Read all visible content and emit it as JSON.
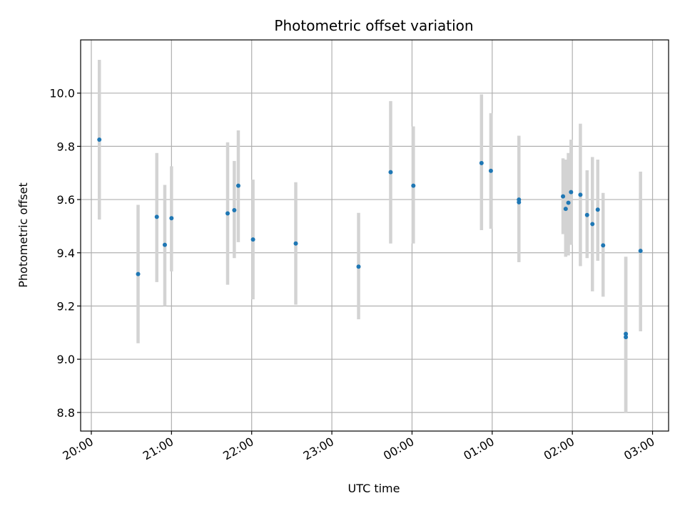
{
  "chart_data": {
    "type": "scatter",
    "title": "Photometric offset variation",
    "xlabel": "UTC time",
    "ylabel": "Photometric offset",
    "x_tick_labels": [
      "20:00",
      "21:00",
      "22:00",
      "23:00",
      "00:00",
      "01:00",
      "02:00",
      "03:00"
    ],
    "y_tick_labels": [
      "8.8",
      "9.0",
      "9.2",
      "9.4",
      "9.6",
      "9.8",
      "10.0"
    ],
    "x_axis": "UTC time (HH:MM), points given as minutes-of-evening clock times",
    "xlim": [
      "19:52",
      "03:12"
    ],
    "ylim": [
      8.73,
      10.2
    ],
    "grid": true,
    "errorbar_color": "#d3d3d3",
    "marker_color": "#1f77b4",
    "points": [
      {
        "x": "20:06",
        "y": 9.825,
        "err_lo": 9.525,
        "err_hi": 10.125
      },
      {
        "x": "20:35",
        "y": 9.32,
        "err_lo": 9.06,
        "err_hi": 9.58
      },
      {
        "x": "20:49",
        "y": 9.535,
        "err_lo": 9.29,
        "err_hi": 9.775
      },
      {
        "x": "20:55",
        "y": 9.43,
        "err_lo": 9.2,
        "err_hi": 9.655
      },
      {
        "x": "21:00",
        "y": 9.53,
        "err_lo": 9.33,
        "err_hi": 9.725
      },
      {
        "x": "21:42",
        "y": 9.548,
        "err_lo": 9.28,
        "err_hi": 9.815
      },
      {
        "x": "21:47",
        "y": 9.56,
        "err_lo": 9.38,
        "err_hi": 9.745
      },
      {
        "x": "21:50",
        "y": 9.652,
        "err_lo": 9.44,
        "err_hi": 9.86
      },
      {
        "x": "22:01",
        "y": 9.45,
        "err_lo": 9.225,
        "err_hi": 9.675
      },
      {
        "x": "22:33",
        "y": 9.435,
        "err_lo": 9.205,
        "err_hi": 9.665
      },
      {
        "x": "23:20",
        "y": 9.348,
        "err_lo": 9.15,
        "err_hi": 9.55
      },
      {
        "x": "23:44",
        "y": 9.703,
        "err_lo": 9.435,
        "err_hi": 9.97
      },
      {
        "x": "00:01",
        "y": 9.652,
        "err_lo": 9.435,
        "err_hi": 9.875
      },
      {
        "x": "00:52",
        "y": 9.737,
        "err_lo": 9.485,
        "err_hi": 9.995
      },
      {
        "x": "00:59",
        "y": 9.708,
        "err_lo": 9.49,
        "err_hi": 9.925
      },
      {
        "x": "01:20",
        "y": 9.59,
        "err_lo": 9.365,
        "err_hi": 9.84
      },
      {
        "x": "01:20",
        "y": 9.6,
        "err_lo": 9.365,
        "err_hi": 9.84
      },
      {
        "x": "01:53",
        "y": 9.612,
        "err_lo": 9.47,
        "err_hi": 9.755
      },
      {
        "x": "01:55",
        "y": 9.565,
        "err_lo": 9.385,
        "err_hi": 9.75
      },
      {
        "x": "01:57",
        "y": 9.588,
        "err_lo": 9.39,
        "err_hi": 9.775
      },
      {
        "x": "01:59",
        "y": 9.628,
        "err_lo": 9.43,
        "err_hi": 9.825
      },
      {
        "x": "02:06",
        "y": 9.618,
        "err_lo": 9.35,
        "err_hi": 9.885
      },
      {
        "x": "02:11",
        "y": 9.542,
        "err_lo": 9.38,
        "err_hi": 9.71
      },
      {
        "x": "02:15",
        "y": 9.508,
        "err_lo": 9.255,
        "err_hi": 9.76
      },
      {
        "x": "02:19",
        "y": 9.562,
        "err_lo": 9.37,
        "err_hi": 9.75
      },
      {
        "x": "02:23",
        "y": 9.428,
        "err_lo": 9.235,
        "err_hi": 9.625
      },
      {
        "x": "02:40",
        "y": 9.095,
        "err_lo": 8.8,
        "err_hi": 9.385
      },
      {
        "x": "02:40",
        "y": 9.083,
        "err_lo": 8.8,
        "err_hi": 9.385
      },
      {
        "x": "02:51",
        "y": 9.407,
        "err_lo": 9.105,
        "err_hi": 9.705
      }
    ]
  }
}
